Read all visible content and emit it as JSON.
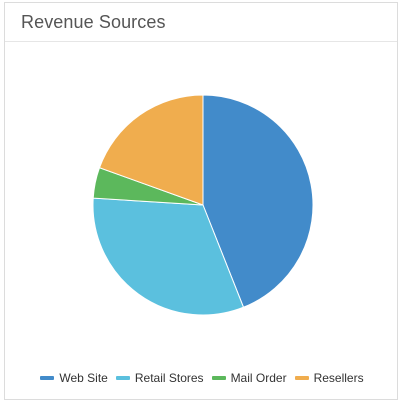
{
  "card": {
    "title": "Revenue Sources"
  },
  "chart_data": {
    "type": "pie",
    "title": "Revenue Sources",
    "start_angle": "12 o'clock, clockwise",
    "legend_position": "bottom",
    "slices": [
      {
        "label": "Web Site",
        "value": 44,
        "color": "#428bca"
      },
      {
        "label": "Retail Stores",
        "value": 32,
        "color": "#5bc0de"
      },
      {
        "label": "Mail Order",
        "value": 4.5,
        "color": "#5cb85c"
      },
      {
        "label": "Resellers",
        "value": 19.5,
        "color": "#f0ad4e"
      }
    ]
  }
}
